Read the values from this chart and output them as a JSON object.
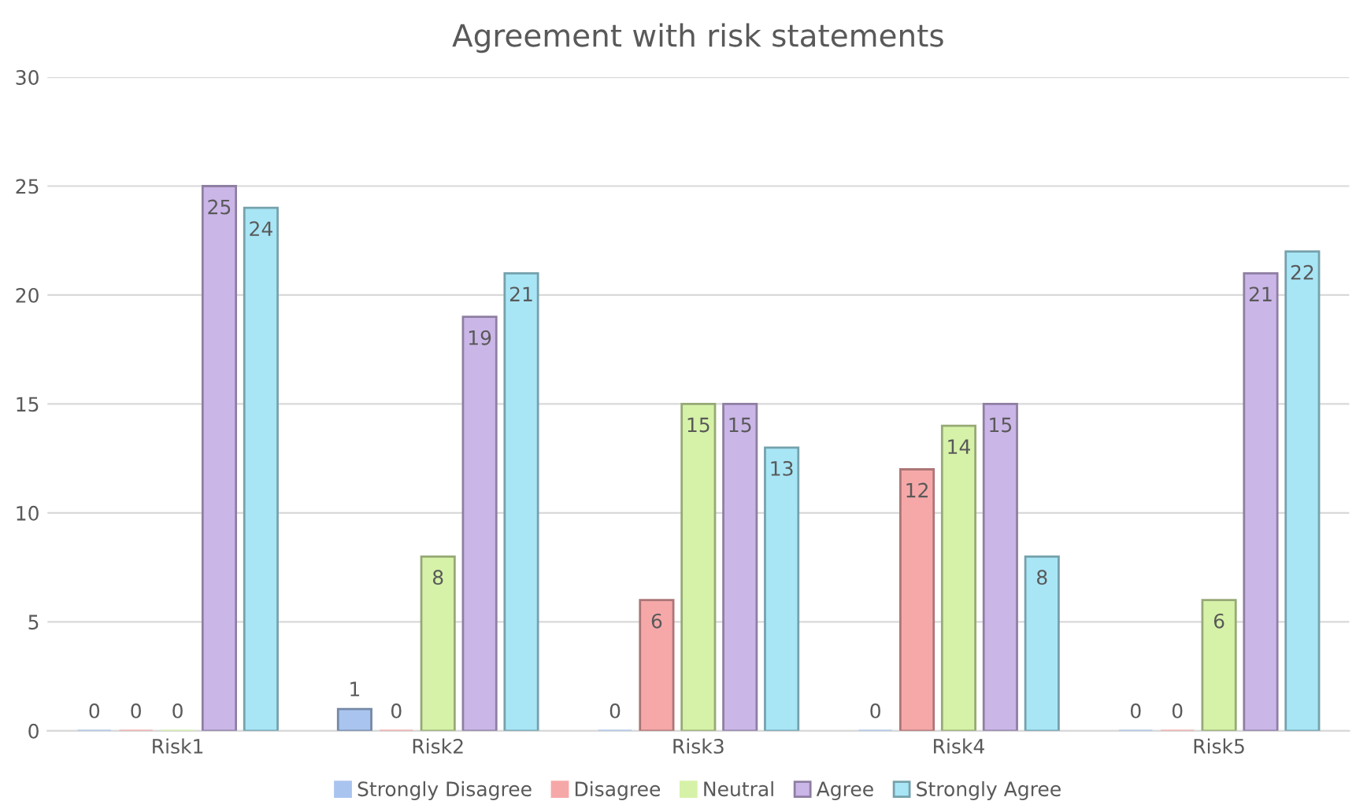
{
  "chart_data": {
    "type": "bar",
    "title": "Agreement with risk statements",
    "categories": [
      "Risk1",
      "Risk2",
      "Risk3",
      "Risk4",
      "Risk5"
    ],
    "series": [
      {
        "name": "Strongly Disagree",
        "color": "#a9c4ef",
        "values": [
          0,
          1,
          0,
          0,
          0
        ]
      },
      {
        "name": "Disagree",
        "color": "#f6a8a8",
        "values": [
          0,
          0,
          6,
          12,
          0
        ]
      },
      {
        "name": "Neutral",
        "color": "#d6f2a8",
        "values": [
          0,
          8,
          15,
          14,
          6
        ]
      },
      {
        "name": "Agree",
        "color": "#cbb6e8",
        "values": [
          25,
          19,
          15,
          15,
          21
        ]
      },
      {
        "name": "Strongly Agree",
        "color": "#a8e6f6",
        "values": [
          24,
          21,
          13,
          8,
          22
        ]
      }
    ],
    "ylim": [
      0,
      30
    ],
    "yticks": [
      0,
      5,
      10,
      15,
      20,
      25,
      30
    ],
    "grid": "y",
    "legend": "bottom",
    "data_labels": true
  }
}
